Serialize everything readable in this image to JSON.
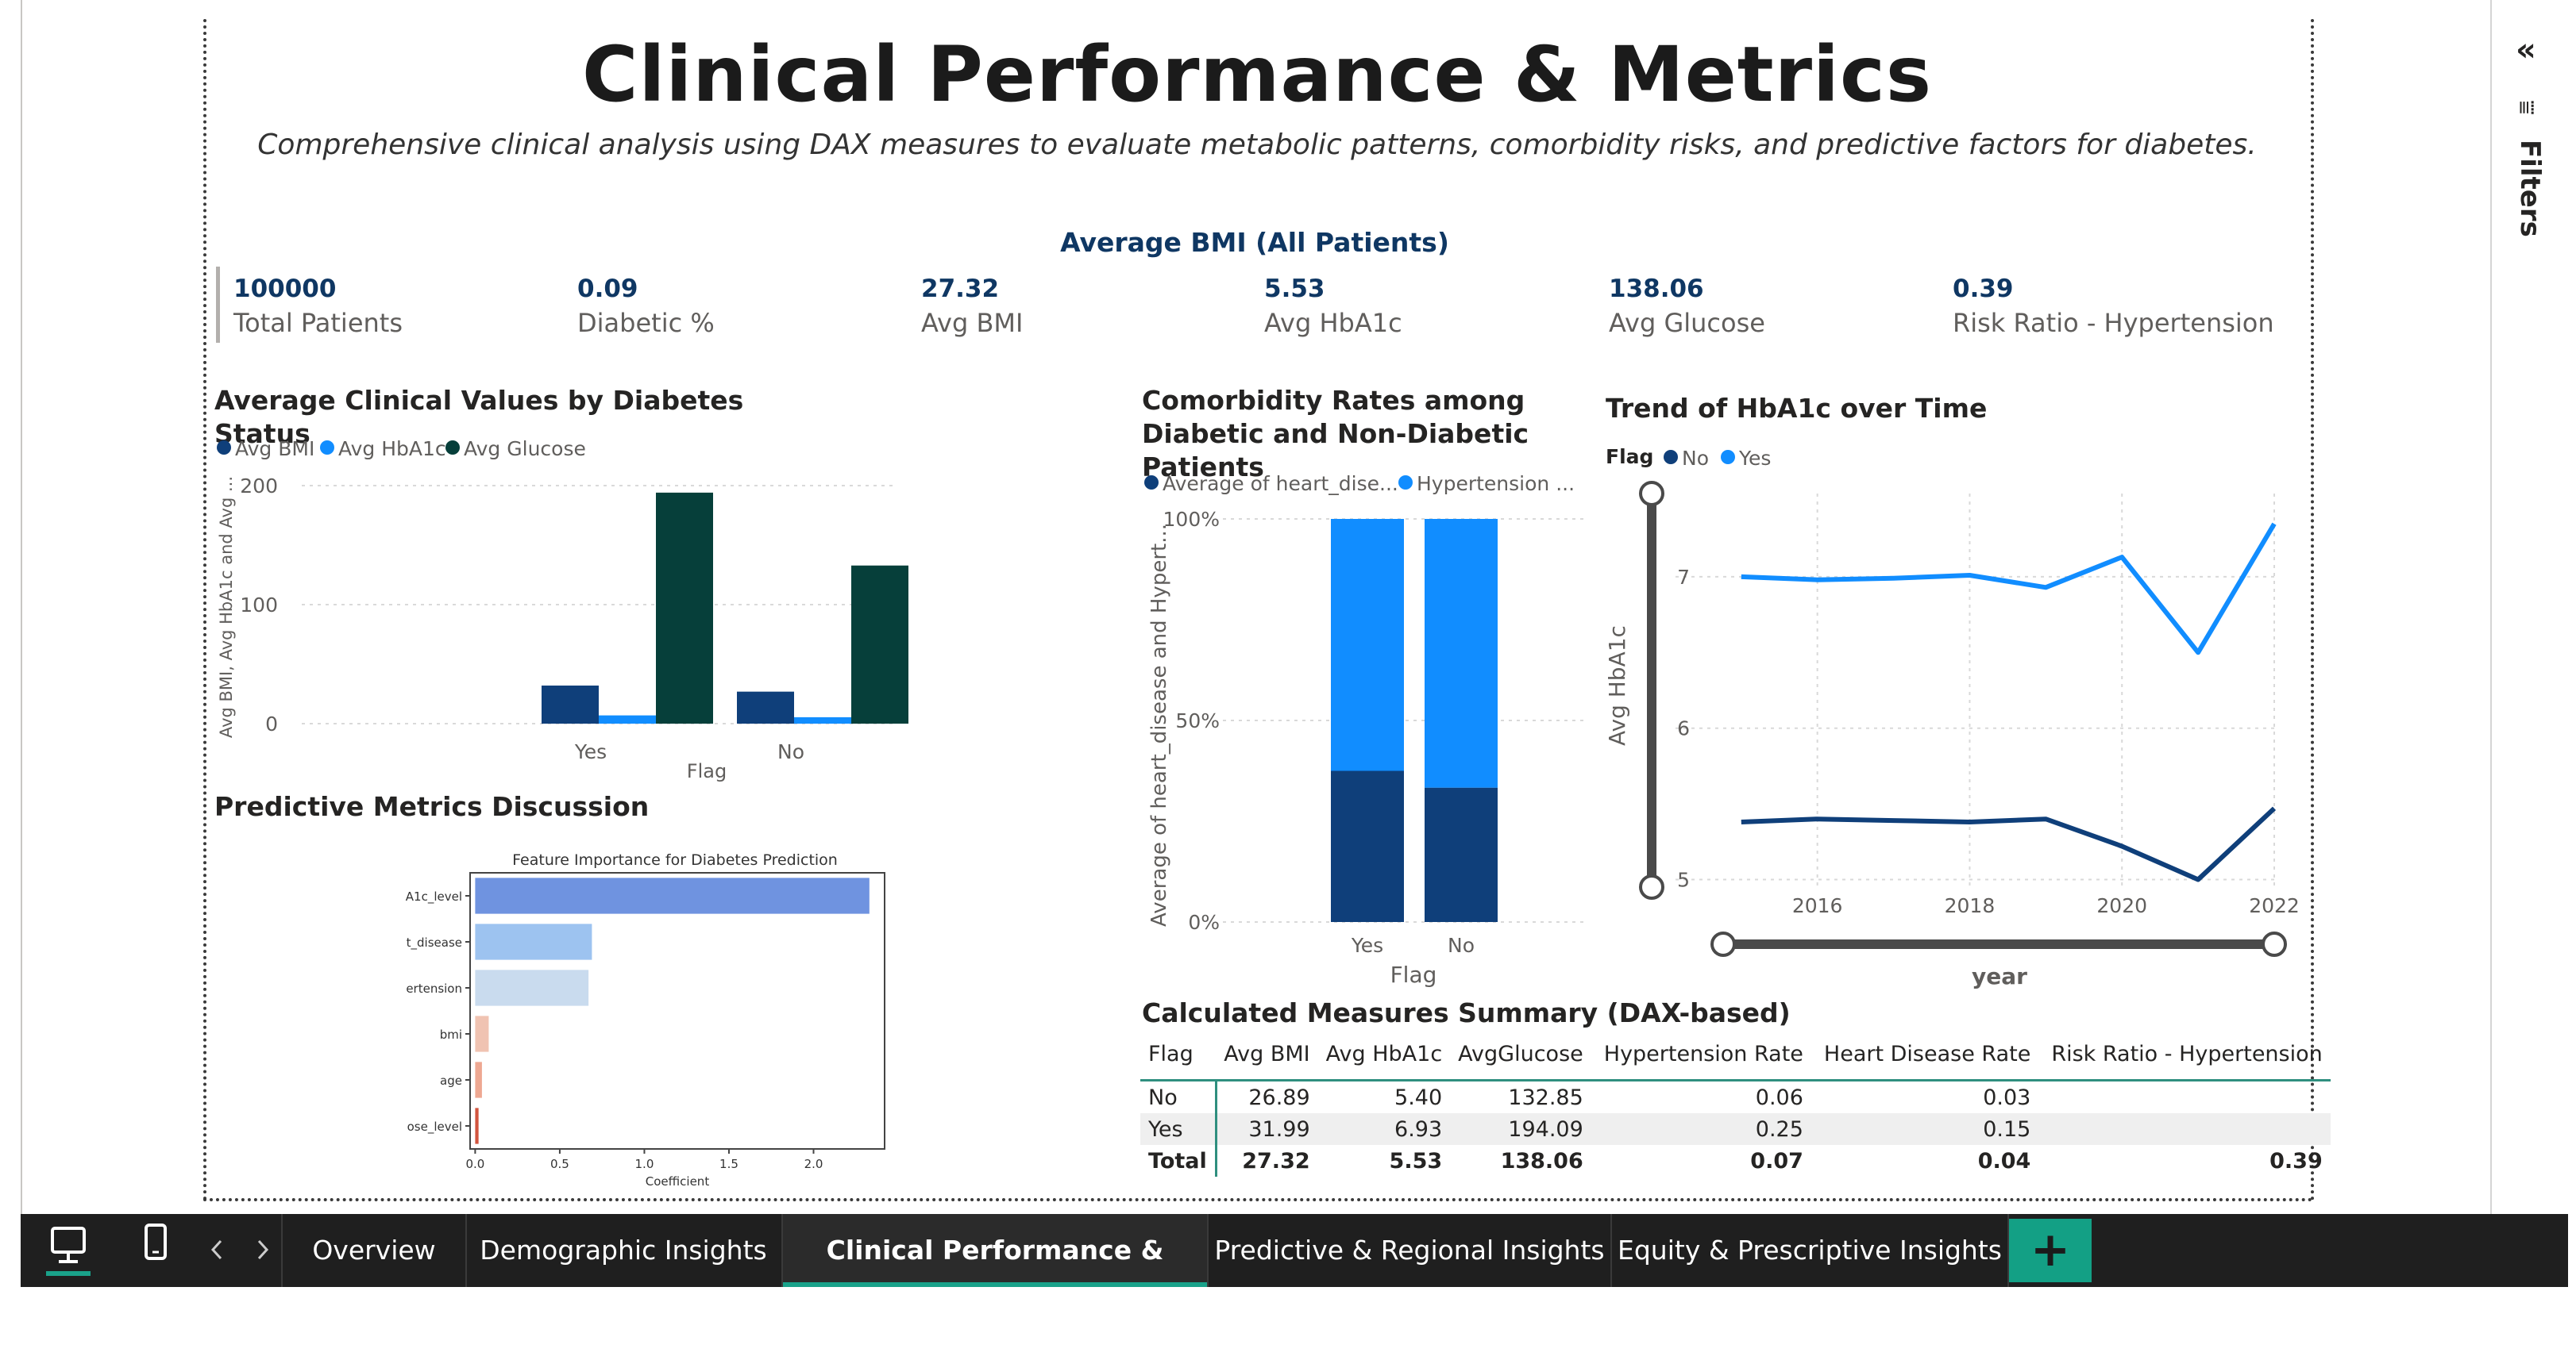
{
  "page": {
    "title": "Clinical Performance & Metrics",
    "subtitle": "Comprehensive clinical analysis using DAX measures to evaluate metabolic patterns, comorbidity risks, and predictive factors for diabetes."
  },
  "kpi_header": "Average BMI (All Patients)",
  "kpis": [
    {
      "value": "100000",
      "label": "Total Patients"
    },
    {
      "value": "0.09",
      "label": "Diabetic %"
    },
    {
      "value": "27.32",
      "label": "Avg BMI"
    },
    {
      "value": "5.53",
      "label": "Avg HbA1c"
    },
    {
      "value": "138.06",
      "label": "Avg Glucose"
    },
    {
      "value": "0.39",
      "label": "Risk Ratio - Hypertension"
    }
  ],
  "colors": {
    "dark_blue": "#0f3f7a",
    "light_blue": "#118dff",
    "dark_green": "#063f3a",
    "teal": "#1aa28a"
  },
  "chart_data": [
    {
      "type": "bar",
      "title": "Average Clinical Values by Diabetes Status",
      "categories": [
        "Yes",
        "No"
      ],
      "series": [
        {
          "name": "Avg BMI",
          "values": [
            31.99,
            26.89
          ]
        },
        {
          "name": "Avg HbA1c",
          "values": [
            6.93,
            5.4
          ]
        },
        {
          "name": "Avg Glucose",
          "values": [
            194.09,
            132.85
          ]
        }
      ],
      "xlabel": "Flag",
      "ylabel": "Avg BMI, Avg HbA1c and Avg ...",
      "yticks": [
        "0",
        "100",
        "200"
      ],
      "ylim": [
        0,
        200
      ]
    },
    {
      "type": "bar",
      "stacked": "100%",
      "title": "Comorbidity Rates among Diabetic and Non-Diabetic Patients",
      "categories": [
        "Yes",
        "No"
      ],
      "series": [
        {
          "name": "Average of heart_dise...",
          "values": [
            0.15,
            0.03
          ]
        },
        {
          "name": "Hypertension ...",
          "values": [
            0.25,
            0.06
          ]
        }
      ],
      "xlabel": "Flag",
      "ylabel": "Average of heart_disease and Hypert...",
      "yticks": [
        "0%",
        "50%",
        "100%"
      ]
    },
    {
      "type": "line",
      "title": "Trend of HbA1c over Time",
      "legend_title": "Flag",
      "x": [
        2015,
        2016,
        2017,
        2018,
        2019,
        2020,
        2021,
        2022
      ],
      "series": [
        {
          "name": "No",
          "values": [
            5.38,
            5.4,
            5.39,
            5.38,
            5.4,
            5.22,
            5.0,
            5.47
          ]
        },
        {
          "name": "Yes",
          "values": [
            7.0,
            6.98,
            6.99,
            7.01,
            6.93,
            7.13,
            6.5,
            7.35
          ]
        }
      ],
      "xlabel": "year",
      "ylabel": "Avg HbA1c",
      "xticks": [
        "2016",
        "2018",
        "2020",
        "2022"
      ],
      "yticks": [
        "5",
        "6",
        "7"
      ],
      "ylim": [
        4.95,
        7.55
      ],
      "xlim": [
        2014.7,
        2022
      ]
    },
    {
      "type": "bar",
      "orientation": "horizontal",
      "title": "Feature Importance for Diabetes Prediction",
      "categories": [
        "A1c_level",
        "t_disease",
        "ertension",
        "bmi",
        "age",
        "ose_level"
      ],
      "values": [
        2.33,
        0.69,
        0.67,
        0.08,
        0.04,
        0.02
      ],
      "xlabel": "Coefficient",
      "xticks": [
        "0.0",
        "0.5",
        "1.0",
        "1.5",
        "2.0"
      ],
      "xlim": [
        -0.03,
        2.42
      ]
    }
  ],
  "predictive_title": "Predictive Metrics Discussion",
  "dax_table": {
    "title": "Calculated Measures Summary (DAX-based)",
    "columns": [
      "Flag",
      "Avg BMI",
      "Avg HbA1c",
      "AvgGlucose",
      "Hypertension Rate",
      "Heart Disease Rate",
      "Risk Ratio - Hypertension"
    ],
    "rows": [
      [
        "No",
        "26.89",
        "5.40",
        "132.85",
        "0.06",
        "0.03",
        ""
      ],
      [
        "Yes",
        "31.99",
        "6.93",
        "194.09",
        "0.25",
        "0.15",
        ""
      ]
    ],
    "total": [
      "Total",
      "27.32",
      "5.53",
      "138.06",
      "0.07",
      "0.04",
      "0.39"
    ]
  },
  "filters": {
    "label": "Filters",
    "collapse_glyph": "«",
    "menu_glyph": "⩸"
  },
  "tabs": [
    {
      "label": "Overview"
    },
    {
      "label": "Demographic Insights"
    },
    {
      "label": "Clinical Performance & Metrics"
    },
    {
      "label": "Predictive & Regional Insights"
    },
    {
      "label": "Equity & Prescriptive Insights"
    }
  ],
  "add_tab_glyph": "+"
}
